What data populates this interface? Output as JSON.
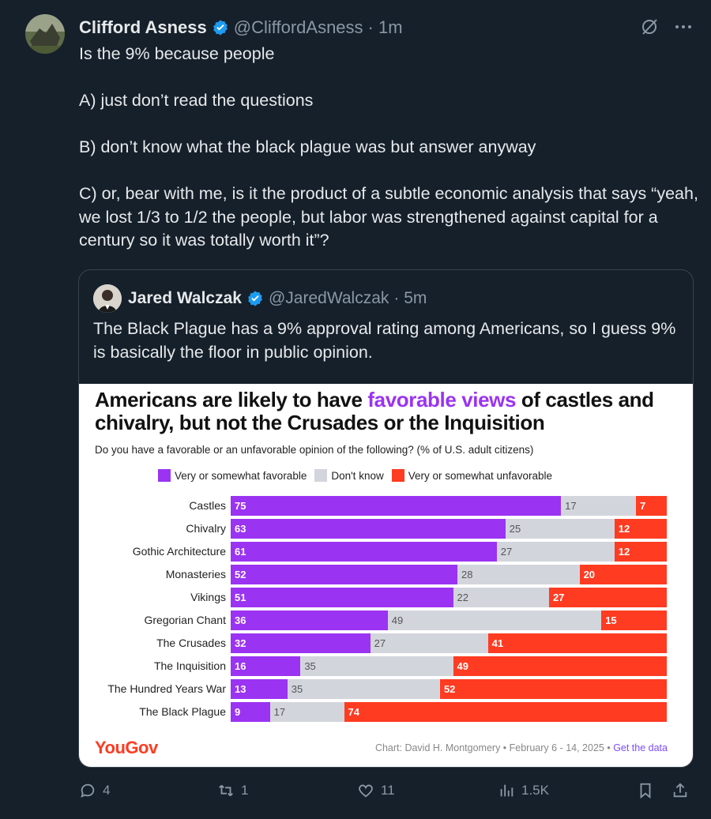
{
  "author": {
    "name": "Clifford Asness",
    "handle": "@CliffordAsness",
    "time": "· 1m"
  },
  "tweet": {
    "lines": [
      "Is the 9% because people",
      "A) just don’t read the questions",
      "B) don’t know what the black plague was but answer anyway",
      "C) or, bear with me, is it the product of a subtle economic analysis that says “yeah, we lost 1/3 to 1/2 the people, but labor was strengthened against capital for a century so it was totally worth it”?"
    ]
  },
  "quote": {
    "name": "Jared Walczak",
    "handle": "@JaredWalczak",
    "time": "· 5m",
    "text": "The Black Plague has a 9% approval rating among Americans, so I guess 9% is basically the floor in public opinion."
  },
  "chart_data": {
    "type": "bar",
    "stacked": true,
    "orientation": "horizontal",
    "title_part1": "Americans are likely to have ",
    "title_highlight": "favorable views",
    "title_part2": " of castles and chivalry, but not the Crusades or the Inquisition",
    "subtitle": "Do you have a favorable or an unfavorable opinion of the following? (% of U.S. adult citizens)",
    "categories": [
      "Castles",
      "Chivalry",
      "Gothic Architecture",
      "Monasteries",
      "Vikings",
      "Gregorian Chant",
      "The Crusades",
      "The Inquisition",
      "The Hundred Years War",
      "The Black Plague"
    ],
    "series": [
      {
        "name": "Very or somewhat favorable",
        "color": "#9b33f2",
        "values": [
          75,
          63,
          61,
          52,
          51,
          36,
          32,
          16,
          13,
          9
        ]
      },
      {
        "name": "Don't know",
        "color": "#d3d5dc",
        "values": [
          17,
          25,
          27,
          28,
          22,
          49,
          27,
          35,
          35,
          17
        ]
      },
      {
        "name": "Very or somewhat unfavorable",
        "color": "#ff3b21",
        "values": [
          7,
          12,
          12,
          20,
          27,
          15,
          41,
          49,
          52,
          74
        ]
      }
    ],
    "brand": "YouGov",
    "credit": "Chart: David H. Montgomery • February 6 - 14, 2025 • ",
    "credit_link": "Get the data"
  },
  "actions": {
    "replies": "4",
    "reposts": "1",
    "likes": "11",
    "views": "1.5K"
  },
  "colors": {
    "background": "#15202b",
    "accent": "#1d9bf0",
    "muted": "#8b98a5"
  }
}
